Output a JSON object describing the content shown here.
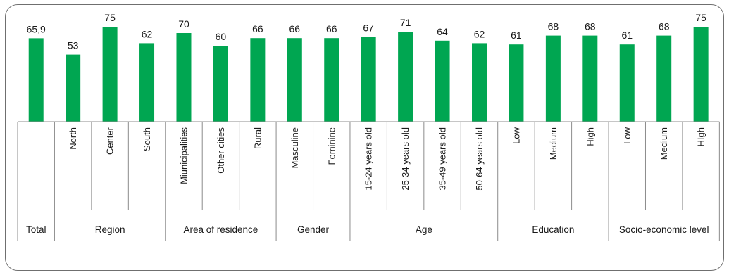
{
  "chart_data": {
    "type": "bar",
    "bar_color": "#00a651",
    "ylim": [
      0,
      75
    ],
    "grid": false,
    "legend": "none",
    "categories": [
      "",
      "North",
      "Center",
      "South",
      "Miunicipalities",
      "Other cities",
      "Rural",
      "Masculine",
      "Feminine",
      "15-24 years old",
      "25-34 years old",
      "35-49 years old",
      "50-64 years old",
      "Low",
      "Medium",
      "High",
      "Low",
      "Medium",
      "HIgh"
    ],
    "values": [
      65.9,
      53,
      75,
      62,
      70,
      60,
      66,
      66,
      66,
      67,
      71,
      64,
      62,
      61,
      68,
      68,
      61,
      68,
      75
    ],
    "value_labels": [
      "65,9",
      "53",
      "75",
      "62",
      "70",
      "60",
      "66",
      "66",
      "66",
      "67",
      "71",
      "64",
      "62",
      "61",
      "68",
      "68",
      "61",
      "68",
      "75"
    ],
    "groups": [
      {
        "label": "Total",
        "start": 0,
        "count": 1
      },
      {
        "label": "Region",
        "start": 1,
        "count": 3
      },
      {
        "label": "Area of residence",
        "start": 4,
        "count": 3
      },
      {
        "label": "Gender",
        "start": 7,
        "count": 2
      },
      {
        "label": "Age",
        "start": 9,
        "count": 4
      },
      {
        "label": "Education",
        "start": 13,
        "count": 3
      },
      {
        "label": "Socio-economic level",
        "start": 16,
        "count": 3
      }
    ]
  }
}
